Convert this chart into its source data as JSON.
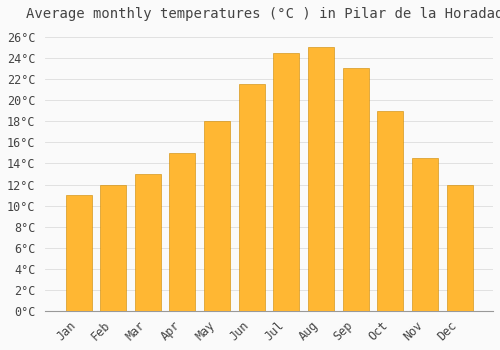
{
  "title": "Average monthly temperatures (°C ) in Pilar de la Horadada",
  "months": [
    "Jan",
    "Feb",
    "Mar",
    "Apr",
    "May",
    "Jun",
    "Jul",
    "Aug",
    "Sep",
    "Oct",
    "Nov",
    "Dec"
  ],
  "values": [
    11,
    12,
    13,
    15,
    18,
    21.5,
    24.5,
    25,
    23,
    19,
    14.5,
    12
  ],
  "bar_color": "#FFA500",
  "bar_color2": "#FFB733",
  "bar_edge_color": "#CC8800",
  "background_color": "#FAFAFA",
  "grid_color": "#DDDDDD",
  "text_color": "#444444",
  "ylim": [
    0,
    27
  ],
  "ytick_step": 2,
  "title_fontsize": 10,
  "tick_fontsize": 8.5,
  "font_family": "monospace"
}
